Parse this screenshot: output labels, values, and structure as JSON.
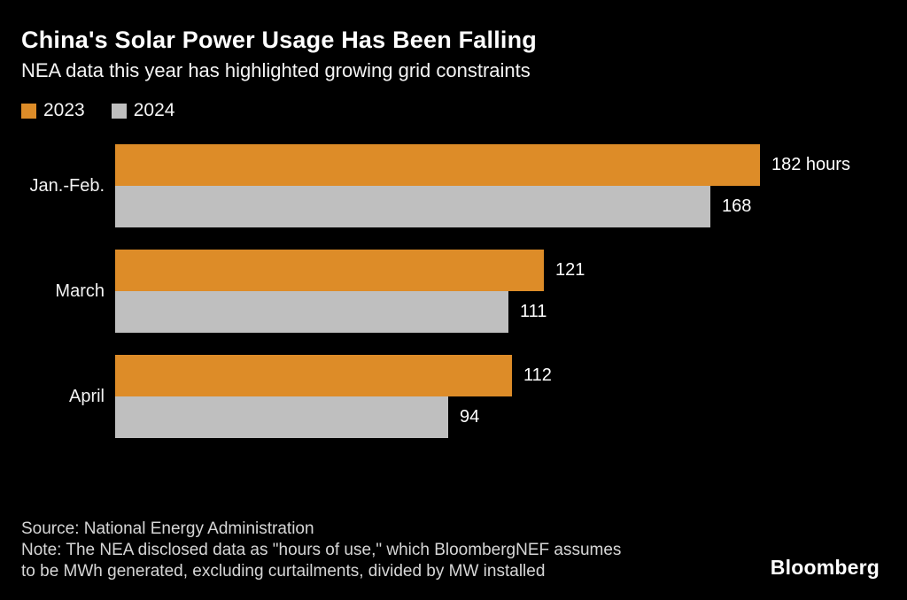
{
  "page": {
    "background": "#000000"
  },
  "header": {
    "title": "China's Solar Power Usage Has Been Falling",
    "subtitle": "NEA data this year has highlighted growing grid constraints"
  },
  "legend": [
    {
      "label": "2023",
      "color": "#DD8C28"
    },
    {
      "label": "2024",
      "color": "#BFBFBF"
    }
  ],
  "chart_data": {
    "type": "bar",
    "orientation": "horizontal",
    "title": "China's Solar Power Usage Has Been Falling",
    "subtitle": "NEA data this year has highlighted growing grid constraints",
    "categories": [
      "Jan.-Feb.",
      "March",
      "April"
    ],
    "series": [
      {
        "name": "2023",
        "color": "#DD8C28",
        "values": [
          182,
          121,
          112
        ]
      },
      {
        "name": "2024",
        "color": "#BFBFBF",
        "values": [
          168,
          111,
          94
        ]
      }
    ],
    "value_labels": [
      [
        "182 hours",
        "168"
      ],
      [
        "121",
        "111"
      ],
      [
        "112",
        "94"
      ]
    ],
    "unit": "hours",
    "xlim": [
      0,
      223
    ],
    "grid": false,
    "legend_position": "top-left",
    "value_label_color": "#ffffff",
    "category_label_color": "#f2f2f2"
  },
  "footer": {
    "source": "Source: National Energy Administration",
    "note_line1": "Note: The NEA disclosed data as \"hours of use,\" which BloombergNEF assumes",
    "note_line2": "to be MWh generated, excluding curtailments, divided by MW installed",
    "logo": "Bloomberg"
  }
}
